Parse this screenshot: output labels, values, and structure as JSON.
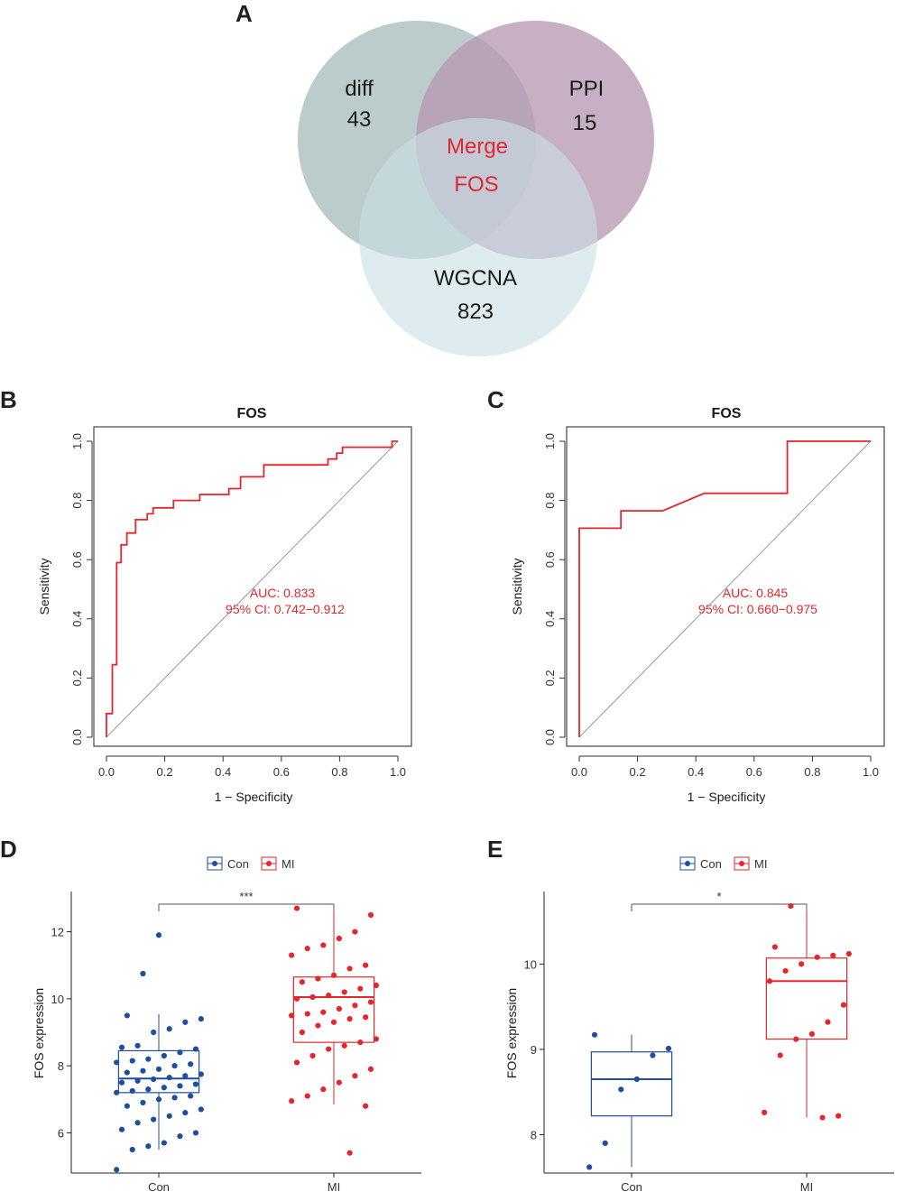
{
  "panels": {
    "a": "A",
    "b": "B",
    "c": "C",
    "d": "D",
    "e": "E"
  },
  "venn": {
    "sets": [
      {
        "name": "diff",
        "count": "43",
        "color": "#a9bcbc"
      },
      {
        "name": "PPI",
        "count": "15",
        "color": "#b799b4"
      },
      {
        "name": "WGCNA",
        "count": "823",
        "color": "#c9e0e6"
      }
    ],
    "merge_label": "Merge",
    "merge_gene": "FOS"
  },
  "colors": {
    "roc": "#e5262d",
    "con": "#1f4e9e",
    "mi": "#e5262d",
    "diag": "#9a9a9a"
  },
  "chart_data": [
    {
      "id": "B",
      "type": "line",
      "title": "FOS",
      "xlabel": "1 − Specificity",
      "ylabel": "Sensitivity",
      "xlim": [
        0,
        1
      ],
      "ylim": [
        0,
        1
      ],
      "xticks": [
        "0.0",
        "0.2",
        "0.4",
        "0.6",
        "0.8",
        "1.0"
      ],
      "yticks": [
        "0.0",
        "0.2",
        "0.4",
        "0.6",
        "0.8",
        "1.0"
      ],
      "auc_text": "AUC: 0.833",
      "ci_text": "95% CI: 0.742−0.912",
      "x": [
        0,
        0,
        0.02,
        0.02,
        0.035,
        0.035,
        0.05,
        0.05,
        0.07,
        0.07,
        0.1,
        0.1,
        0.14,
        0.14,
        0.16,
        0.16,
        0.19,
        0.19,
        0.2,
        0.2,
        0.23,
        0.23,
        0.26,
        0.26,
        0.32,
        0.32,
        0.42,
        0.42,
        0.46,
        0.46,
        0.54,
        0.54,
        0.7,
        0.7,
        0.76,
        0.76,
        0.79,
        0.79,
        0.81,
        0.81,
        0.98,
        0.98,
        1.0
      ],
      "y": [
        0,
        0.08,
        0.08,
        0.245,
        0.245,
        0.59,
        0.59,
        0.65,
        0.65,
        0.69,
        0.69,
        0.735,
        0.735,
        0.755,
        0.755,
        0.775,
        0.775,
        0.775,
        0.775,
        0.775,
        0.775,
        0.8,
        0.8,
        0.8,
        0.8,
        0.82,
        0.82,
        0.84,
        0.84,
        0.88,
        0.88,
        0.92,
        0.92,
        0.92,
        0.92,
        0.94,
        0.94,
        0.96,
        0.96,
        0.98,
        0.98,
        1.0,
        1.0
      ]
    },
    {
      "id": "C",
      "type": "line",
      "title": "FOS",
      "xlabel": "1 − Specificity",
      "ylabel": "Sensitivity",
      "xlim": [
        0,
        1
      ],
      "ylim": [
        0,
        1
      ],
      "xticks": [
        "0.0",
        "0.2",
        "0.4",
        "0.6",
        "0.8",
        "1.0"
      ],
      "yticks": [
        "0.0",
        "0.2",
        "0.4",
        "0.6",
        "0.8",
        "1.0"
      ],
      "auc_text": "AUC: 0.845",
      "ci_text": "95% CI: 0.660−0.975",
      "x": [
        0,
        0,
        0.143,
        0.143,
        0.286,
        0.429,
        0.714,
        0.714,
        1.0
      ],
      "y": [
        0,
        0.706,
        0.706,
        0.765,
        0.765,
        0.824,
        0.824,
        1.0,
        1.0
      ]
    },
    {
      "id": "D",
      "type": "box",
      "ylabel": "FOS expression",
      "categories": [
        "Con",
        "MI"
      ],
      "legend": [
        "Con",
        "MI"
      ],
      "ylim": [
        4.8,
        13.2
      ],
      "yticks": [
        6,
        8,
        10,
        12
      ],
      "significance": "***",
      "boxes": [
        {
          "q1": 7.2,
          "median": 7.62,
          "q3": 8.45,
          "whisker_low": 5.5,
          "whisker_high": 9.55
        },
        {
          "q1": 8.7,
          "median": 10.05,
          "q3": 10.65,
          "whisker_low": 6.85,
          "whisker_high": 12.7
        }
      ],
      "points": [
        [
          4.9,
          5.5,
          5.6,
          5.7,
          5.9,
          6.0,
          6.1,
          6.3,
          6.4,
          6.5,
          6.6,
          6.7,
          6.8,
          6.9,
          7.0,
          7.05,
          7.1,
          7.2,
          7.25,
          7.3,
          7.35,
          7.4,
          7.45,
          7.5,
          7.55,
          7.6,
          7.65,
          7.7,
          7.75,
          7.8,
          7.85,
          7.9,
          8.0,
          8.05,
          8.1,
          8.15,
          8.2,
          8.3,
          8.4,
          8.5,
          8.55,
          8.6,
          9.0,
          9.1,
          9.3,
          9.4,
          9.5,
          10.75,
          11.9
        ],
        [
          5.4,
          6.8,
          6.95,
          7.1,
          7.3,
          7.5,
          7.7,
          7.9,
          8.1,
          8.3,
          8.5,
          8.6,
          8.7,
          8.8,
          9.0,
          9.2,
          9.3,
          9.4,
          9.45,
          9.5,
          9.55,
          9.6,
          9.7,
          9.8,
          9.9,
          10.0,
          10.05,
          10.1,
          10.2,
          10.3,
          10.4,
          10.5,
          10.6,
          10.7,
          10.9,
          11.0,
          11.3,
          11.5,
          11.6,
          11.8,
          12.0,
          12.5,
          12.7
        ]
      ]
    },
    {
      "id": "E",
      "type": "box",
      "ylabel": "FOS expression",
      "categories": [
        "Con",
        "MI"
      ],
      "legend": [
        "Con",
        "MI"
      ],
      "ylim": [
        7.55,
        10.85
      ],
      "yticks": [
        8,
        9,
        10
      ],
      "significance": "*",
      "boxes": [
        {
          "q1": 8.22,
          "median": 8.65,
          "q3": 8.97,
          "whisker_low": 7.62,
          "whisker_high": 9.17
        },
        {
          "q1": 9.12,
          "median": 9.8,
          "q3": 10.07,
          "whisker_low": 8.2,
          "whisker_high": 10.68
        }
      ],
      "points": [
        [
          7.62,
          7.9,
          8.53,
          8.65,
          8.93,
          9.01,
          9.17
        ],
        [
          8.2,
          8.22,
          8.26,
          8.93,
          9.12,
          9.18,
          9.32,
          9.52,
          9.8,
          9.92,
          10.0,
          10.08,
          10.1,
          10.12,
          10.2,
          10.68
        ]
      ]
    }
  ]
}
